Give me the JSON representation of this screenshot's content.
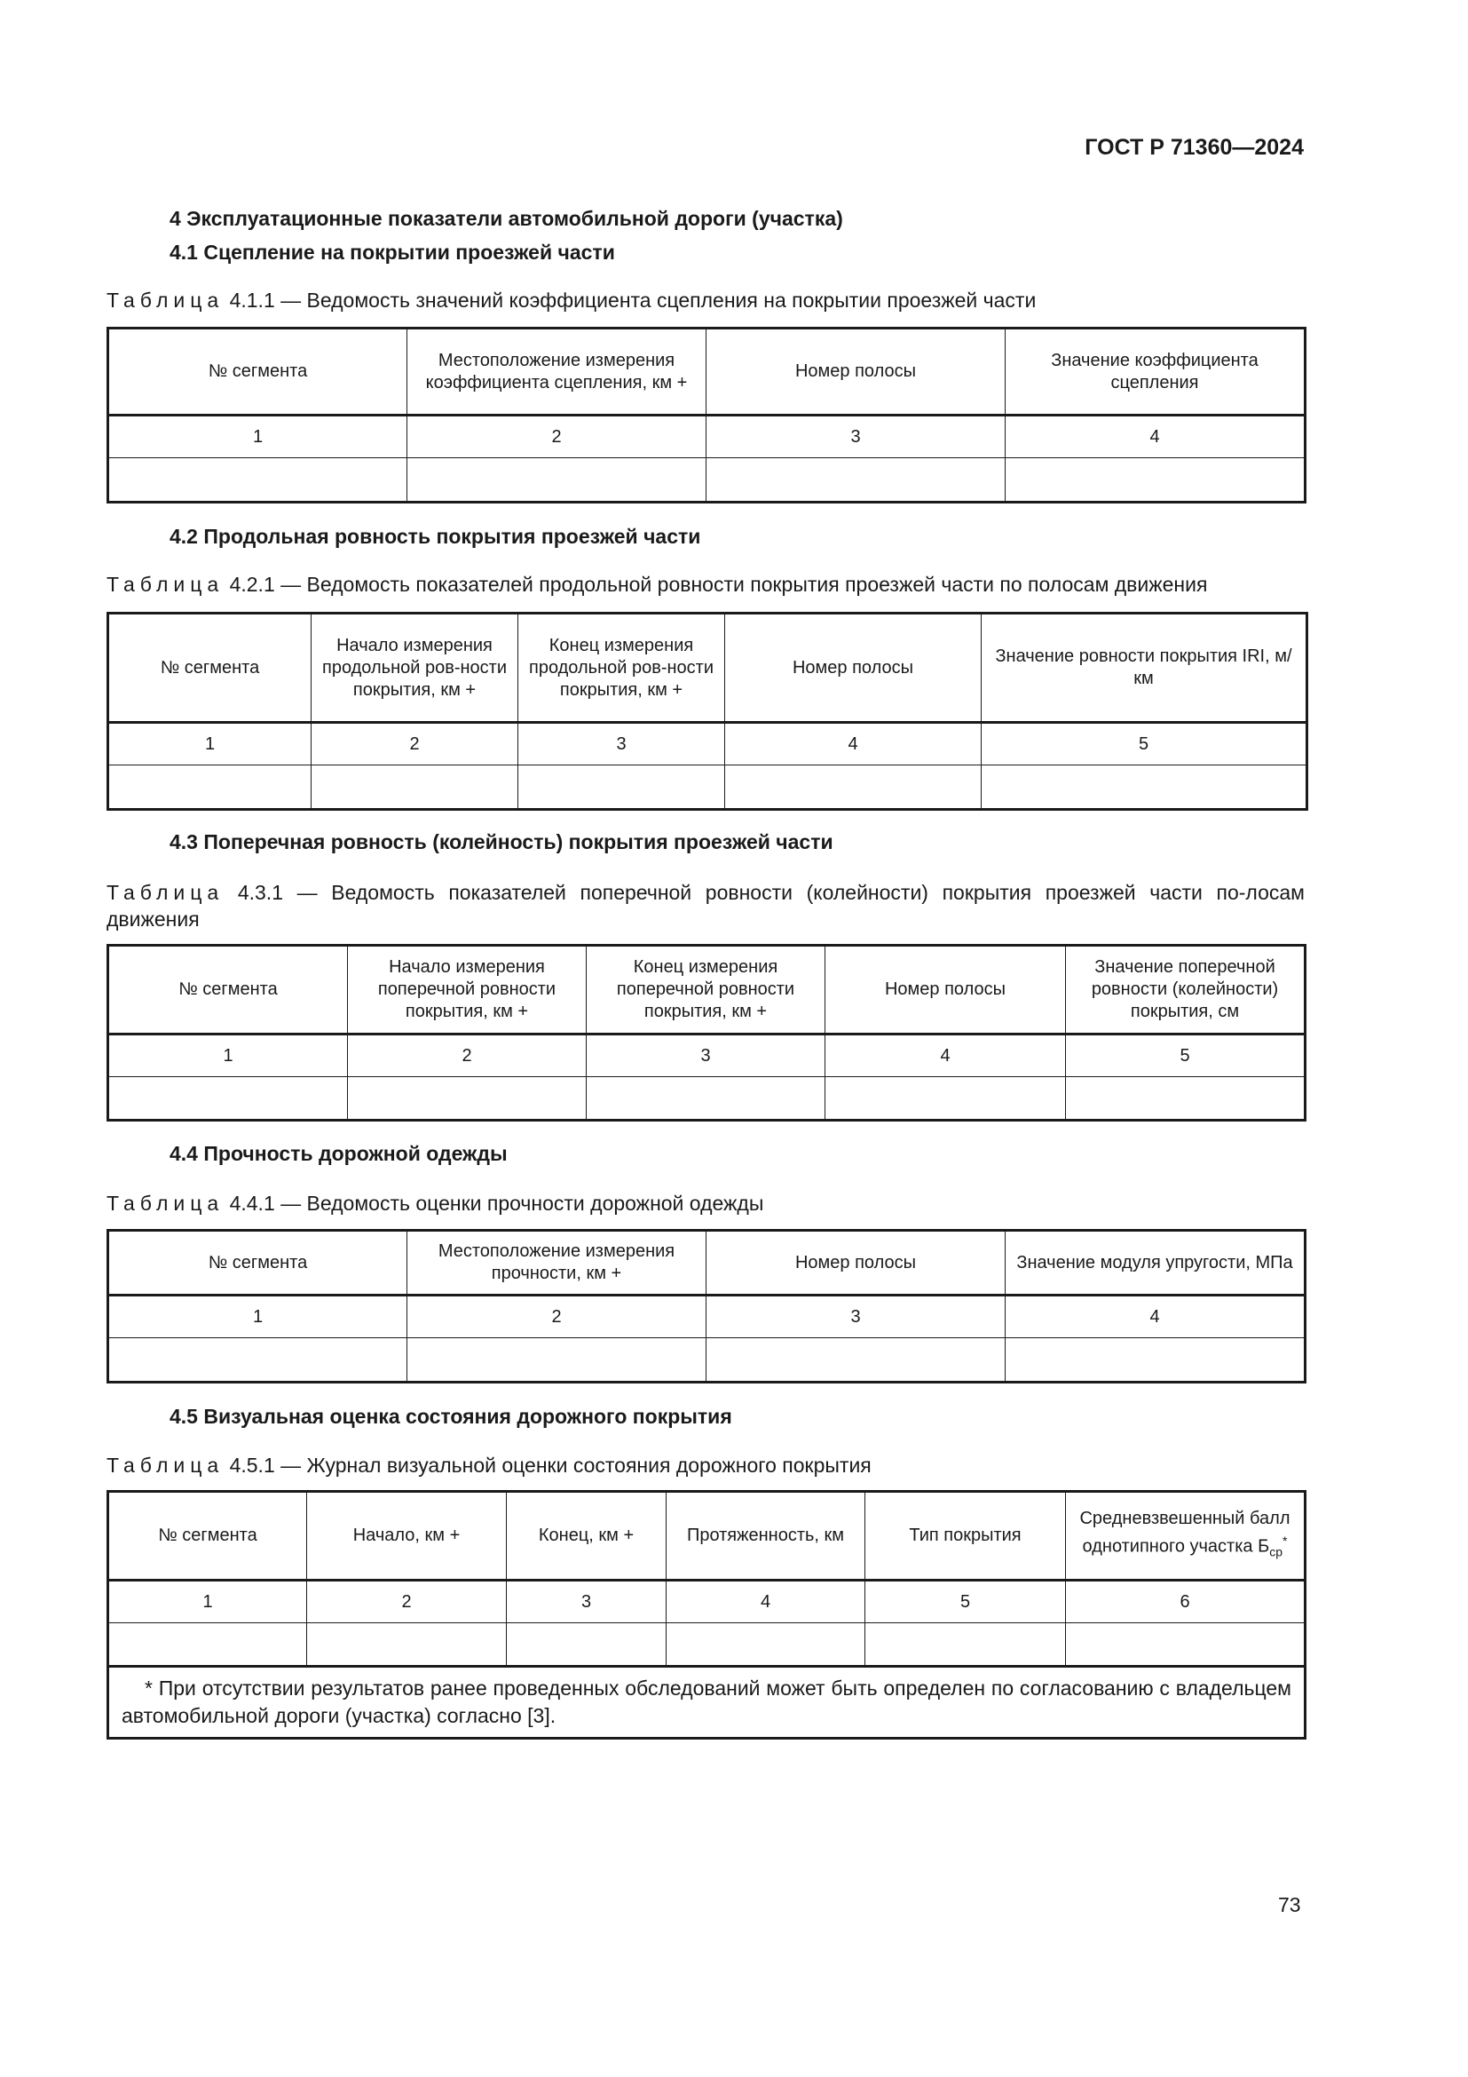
{
  "header": {
    "doc_id": "ГОСТ Р 71360—2024"
  },
  "section4": {
    "title": "4 Эксплуатационные показатели автомобильной дороги (участка)"
  },
  "s41": {
    "title": "4.1 Сцепление на покрытии проезжей части",
    "caption_prefix": "Таблица",
    "caption": "4.1.1 — Ведомость значений коэффициента сцепления на покрытии проезжей части",
    "headers": [
      "№ сегмента",
      "Местоположение измерения коэффициента сцепления, км +",
      "Номер полосы",
      "Значение коэффициента сцепления"
    ],
    "numbers": [
      "1",
      "2",
      "3",
      "4"
    ]
  },
  "s42": {
    "title": "4.2 Продольная ровность покрытия проезжей части",
    "caption_prefix": "Таблица",
    "caption": "4.2.1 — Ведомость показателей продольной ровности покрытия проезжей части по полосам движения",
    "headers": [
      "№ сегмента",
      "Начало измерения продольной ров-ности покрытия, км +",
      "Конец измерения продольной ров-ности покрытия, км +",
      "Номер полосы",
      "Значение ровности покрытия IRI, м/км"
    ],
    "numbers": [
      "1",
      "2",
      "3",
      "4",
      "5"
    ]
  },
  "s43": {
    "title": "4.3 Поперечная ровность (колейность) покрытия проезжей части",
    "caption_prefix": "Таблица",
    "caption": "4.3.1 — Ведомость показателей поперечной ровности (колейности) покрытия проезжей части по-лосам движения",
    "headers": [
      "№ сегмента",
      "Начало измерения поперечной ровности покрытия, км +",
      "Конец измерения поперечной ровности покрытия, км +",
      "Номер полосы",
      "Значение поперечной ровности (колейности) покрытия, см"
    ],
    "numbers": [
      "1",
      "2",
      "3",
      "4",
      "5"
    ]
  },
  "s44": {
    "title": "4.4 Прочность дорожной одежды",
    "caption_prefix": "Таблица",
    "caption": "4.4.1 — Ведомость оценки прочности дорожной одежды",
    "headers": [
      "№ сегмента",
      "Местоположение измерения прочности, км +",
      "Номер полосы",
      "Значение модуля упругости, МПа"
    ],
    "numbers": [
      "1",
      "2",
      "3",
      "4"
    ]
  },
  "s45": {
    "title": "4.5 Визуальная оценка состояния дорожного покрытия",
    "caption_prefix": "Таблица",
    "caption": "4.5.1 — Журнал визуальной оценки состояния дорожного покрытия",
    "headers": [
      "№ сегмента",
      "Начало, км +",
      "Конец, км +",
      "Протяженность, км",
      "Тип покрытия",
      "Средневзвешенный балл однотипного участка Б"
    ],
    "header6_sub": "ср",
    "header6_sup": "*",
    "numbers": [
      "1",
      "2",
      "3",
      "4",
      "5",
      "6"
    ],
    "footnote": "*   При отсутствии результатов ранее проведенных обследований может быть определен по согласованию с владельцем автомобильной дороги (участка) согласно [3]."
  },
  "footer": {
    "page_number": "73"
  }
}
